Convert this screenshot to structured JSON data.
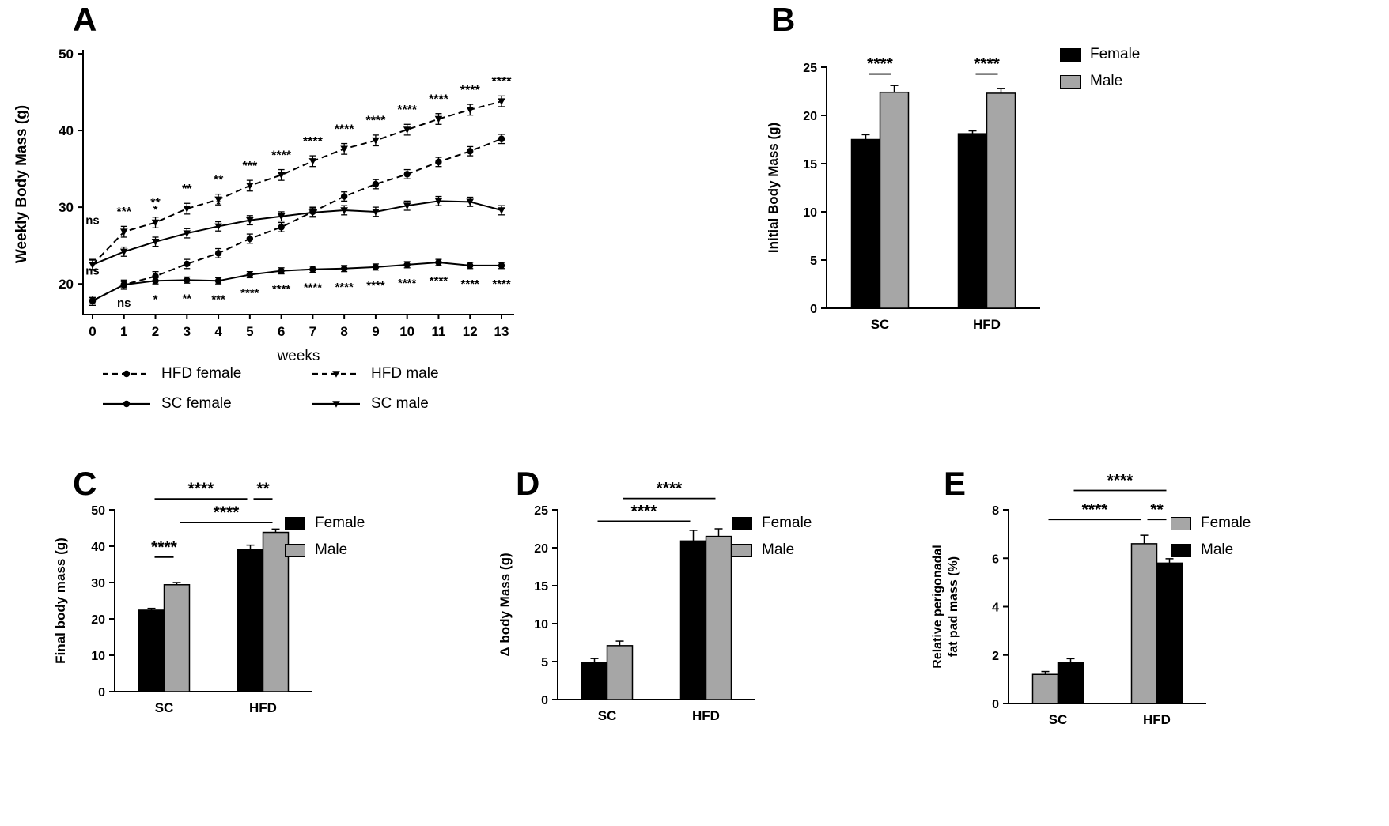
{
  "figure": {
    "background": "#ffffff",
    "accent_black": "#000000",
    "accent_gray": "#a6a6a6"
  },
  "chart_data": [
    {
      "panel": "A",
      "type": "line",
      "xlabel": "weeks",
      "ylabel": "Weekly Body Mass (g)",
      "ylim": [
        16,
        50
      ],
      "yticks": [
        20,
        30,
        40,
        50
      ],
      "x": [
        0,
        1,
        2,
        3,
        4,
        5,
        6,
        7,
        8,
        9,
        10,
        11,
        12,
        13
      ],
      "series": [
        {
          "name": "HFD female",
          "dashed": true,
          "marker": "circle",
          "err": 0.6,
          "values": [
            17.8,
            19.9,
            21.0,
            22.6,
            24.0,
            25.9,
            27.4,
            29.4,
            31.4,
            33.0,
            34.3,
            35.9,
            37.3,
            38.9
          ]
        },
        {
          "name": "HFD male",
          "dashed": true,
          "marker": "triangle",
          "err": 0.7,
          "values": [
            22.5,
            26.8,
            28.0,
            29.8,
            31.0,
            32.8,
            34.2,
            36.0,
            37.6,
            38.7,
            40.1,
            41.5,
            42.7,
            43.8
          ]
        },
        {
          "name": "SC female",
          "dashed": false,
          "marker": "circle",
          "err": 0.4,
          "values": [
            17.8,
            19.9,
            20.4,
            20.5,
            20.4,
            21.2,
            21.7,
            21.9,
            22.0,
            22.2,
            22.5,
            22.8,
            22.4,
            22.4
          ]
        },
        {
          "name": "SC male",
          "dashed": false,
          "marker": "triangle",
          "err": 0.6,
          "values": [
            22.5,
            24.2,
            25.5,
            26.6,
            27.5,
            28.3,
            28.8,
            29.3,
            29.6,
            29.4,
            30.2,
            30.8,
            30.7,
            29.6
          ]
        }
      ],
      "sig_above": [
        "",
        "***",
        "**",
        "**",
        "**",
        "***",
        "****",
        "****",
        "****",
        "****",
        "****",
        "****",
        "****",
        "****"
      ],
      "sig_below": [
        "",
        "ns",
        "*",
        "**",
        "***",
        "****",
        "****",
        "****",
        "****",
        "****",
        "****",
        "****",
        "****",
        "****"
      ],
      "annotations": [
        {
          "x": 0,
          "y": 27.8,
          "text": "ns"
        },
        {
          "x": 0,
          "y": 21.2,
          "text": "ns"
        },
        {
          "x": 2,
          "y": 29.2,
          "text": "*"
        },
        {
          "x": 4,
          "y": 29.9,
          "text": "*"
        }
      ],
      "legend": [
        {
          "label": "HFD female",
          "dashed": true,
          "marker": "circle"
        },
        {
          "label": "HFD male",
          "dashed": true,
          "marker": "triangle"
        },
        {
          "label": "SC female",
          "dashed": false,
          "marker": "circle"
        },
        {
          "label": "SC male",
          "dashed": false,
          "marker": "triangle"
        }
      ]
    },
    {
      "panel": "B",
      "type": "bar",
      "ylabel": "Initial Body Mass (g)",
      "ylim": [
        0,
        25
      ],
      "yticks": [
        0,
        5,
        10,
        15,
        20,
        25
      ],
      "categories": [
        "SC",
        "HFD"
      ],
      "series": [
        {
          "name": "Female",
          "color": "#000000",
          "values": [
            17.5,
            18.1
          ],
          "errors": [
            0.5,
            0.3
          ]
        },
        {
          "name": "Male",
          "color": "#a6a6a6",
          "values": [
            22.4,
            22.3
          ],
          "errors": [
            0.7,
            0.5
          ]
        }
      ],
      "brackets": [
        {
          "i1": 0,
          "i2": 1,
          "y": 24.3,
          "label": "****"
        },
        {
          "i1": 2,
          "i2": 3,
          "y": 24.3,
          "label": "****"
        }
      ],
      "legend": [
        {
          "label": "Female",
          "color": "#000000"
        },
        {
          "label": "Male",
          "color": "#a6a6a6"
        }
      ]
    },
    {
      "panel": "C",
      "type": "bar",
      "ylabel": "Final body mass (g)",
      "ylim": [
        0,
        50
      ],
      "yticks": [
        0,
        10,
        20,
        30,
        40,
        50
      ],
      "categories": [
        "SC",
        "HFD"
      ],
      "series": [
        {
          "name": "Female",
          "color": "#000000",
          "values": [
            22.4,
            39.0
          ],
          "errors": [
            0.5,
            1.3
          ]
        },
        {
          "name": "Male",
          "color": "#a6a6a6",
          "values": [
            29.4,
            43.8
          ],
          "errors": [
            0.6,
            0.9
          ]
        }
      ],
      "brackets": [
        {
          "i1": 0,
          "i2": 1,
          "y": 37,
          "label": "****"
        },
        {
          "i1": 0,
          "i2": 2,
          "y": 53,
          "label": "****"
        },
        {
          "i1": 1,
          "i2": 3,
          "y": 46.5,
          "label": "****"
        },
        {
          "i1": 2,
          "i2": 3,
          "y": 53,
          "label": "**"
        }
      ],
      "legend": [
        {
          "label": "Female",
          "color": "#000000"
        },
        {
          "label": "Male",
          "color": "#a6a6a6"
        }
      ]
    },
    {
      "panel": "D",
      "type": "bar",
      "ylabel": "Δ body Mass (g)",
      "ylim": [
        0,
        25
      ],
      "yticks": [
        0,
        5,
        10,
        15,
        20,
        25
      ],
      "categories": [
        "SC",
        "HFD"
      ],
      "series": [
        {
          "name": "Female",
          "color": "#000000",
          "values": [
            4.9,
            20.9
          ],
          "errors": [
            0.5,
            1.4
          ]
        },
        {
          "name": "Male",
          "color": "#a6a6a6",
          "values": [
            7.1,
            21.5
          ],
          "errors": [
            0.6,
            1.0
          ]
        }
      ],
      "brackets": [
        {
          "i1": 0,
          "i2": 2,
          "y": 23.5,
          "label": "****"
        },
        {
          "i1": 1,
          "i2": 3,
          "y": 26.5,
          "label": "****"
        }
      ],
      "legend": [
        {
          "label": "Female",
          "color": "#000000"
        },
        {
          "label": "Male",
          "color": "#a6a6a6"
        }
      ]
    },
    {
      "panel": "E",
      "type": "bar",
      "ylabel_lines": [
        "Relative perigonadal",
        "fat pad mass (%)"
      ],
      "ylim": [
        0,
        8
      ],
      "yticks": [
        0,
        2,
        4,
        6,
        8
      ],
      "categories": [
        "SC",
        "HFD"
      ],
      "series": [
        {
          "name": "Female",
          "color": "#a6a6a6",
          "values": [
            1.2,
            6.6
          ],
          "errors": [
            0.12,
            0.35
          ]
        },
        {
          "name": "Male",
          "color": "#000000",
          "values": [
            1.7,
            5.8
          ],
          "errors": [
            0.15,
            0.18
          ]
        }
      ],
      "brackets": [
        {
          "i1": 0,
          "i2": 2,
          "y": 7.6,
          "label": "****"
        },
        {
          "i1": 1,
          "i2": 3,
          "y": 8.8,
          "label": "****"
        },
        {
          "i1": 2,
          "i2": 3,
          "y": 7.6,
          "label": "**"
        }
      ],
      "legend": [
        {
          "label": "Female",
          "color": "#a6a6a6"
        },
        {
          "label": "Male",
          "color": "#000000"
        }
      ]
    }
  ]
}
